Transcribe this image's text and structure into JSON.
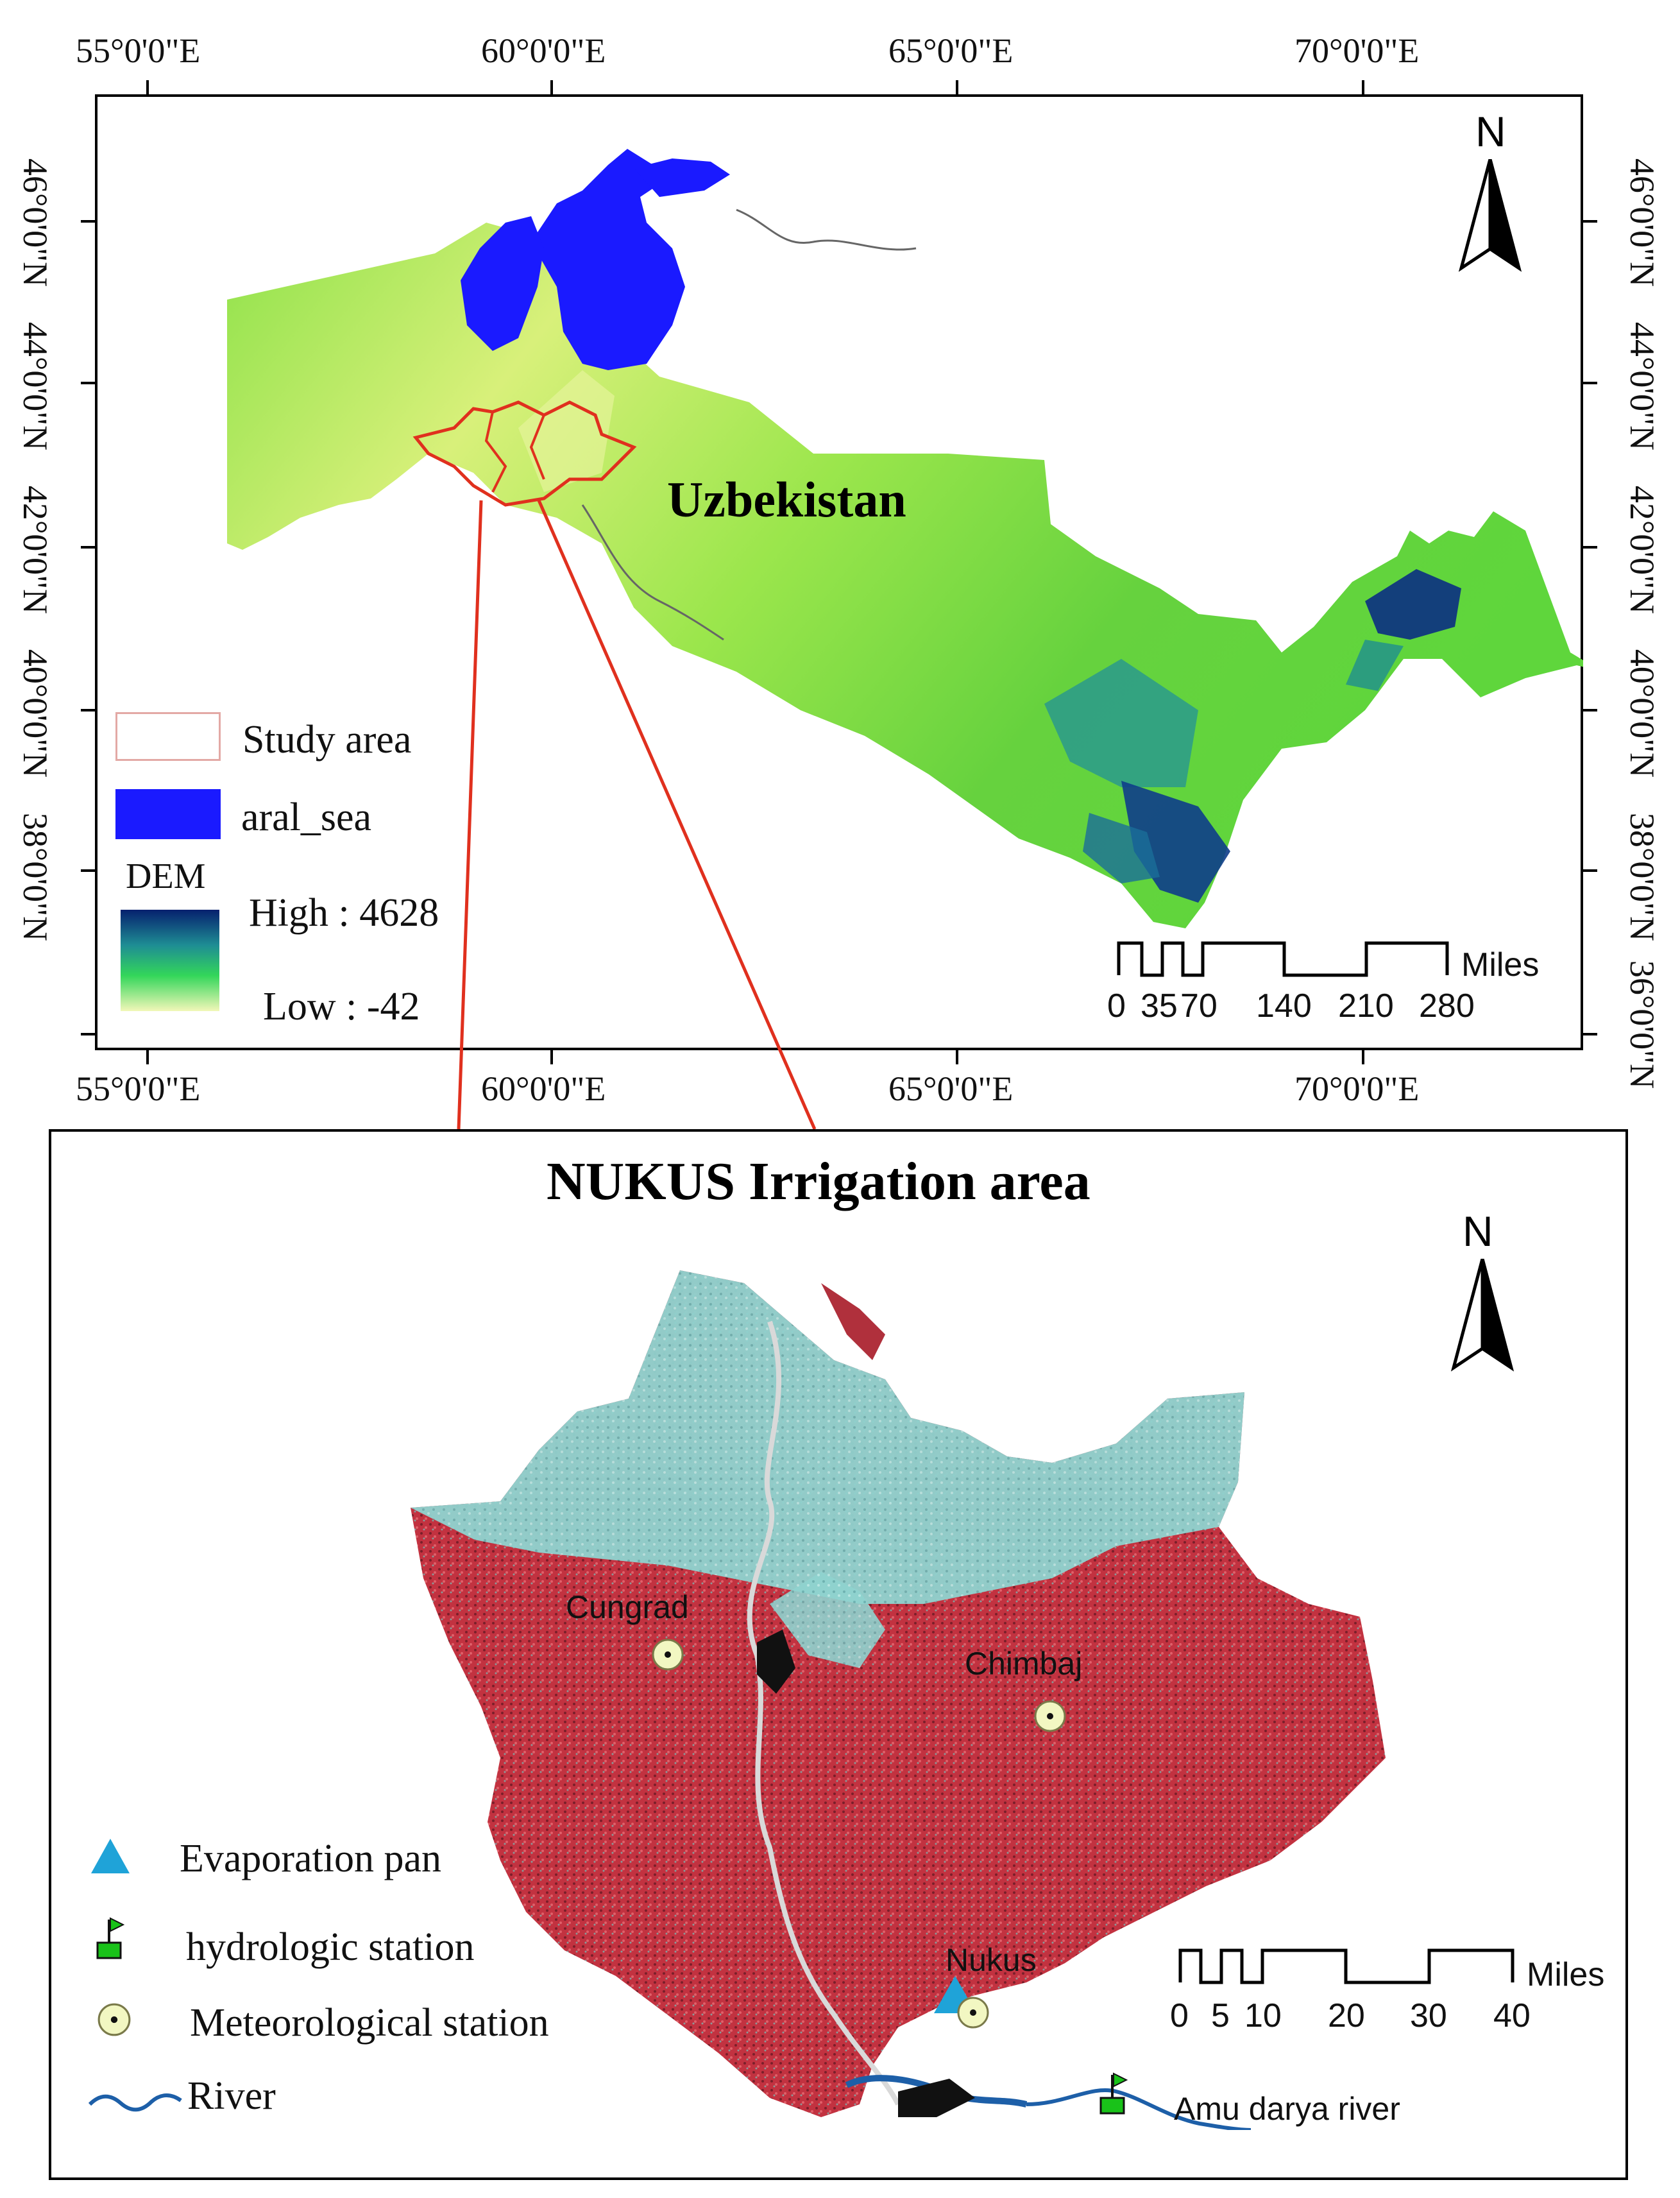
{
  "top_map": {
    "lon_ticks": [
      "55°0'0\"E",
      "60°0'0\"E",
      "65°0'0\"E",
      "70°0'0\"E"
    ],
    "lat_ticks": [
      "46°0'0\"N",
      "44°0'0\"N",
      "42°0'0\"N",
      "40°0'0\"N",
      "38°0'0\"N"
    ],
    "lat_ticks_right": [
      "46°0'0\"N",
      "44°0'0\"N",
      "42°0'0\"N",
      "40°0'0\"N",
      "38°0'0\"N",
      "36°0'0\"N"
    ],
    "country_label": "Uzbekistan",
    "north_label": "N",
    "legend": {
      "study_area": "Study area",
      "aral_sea": "aral_sea",
      "dem_title": "DEM",
      "dem_high": "High : 4628",
      "dem_low": "Low : -42"
    },
    "scale": {
      "unit": "Miles",
      "ticks": [
        "0",
        "35",
        "70",
        "140",
        "210",
        "280"
      ]
    },
    "colors": {
      "aral_sea": "#1a1aff",
      "study_area_outline": "#e0301e",
      "dem_high": "#06206e",
      "dem_low": "#f2f7b8"
    }
  },
  "bottom_map": {
    "title": "NUKUS Irrigation area",
    "north_label": "N",
    "places": {
      "cungrad": "Cungrad",
      "chimbaj": "Chimbaj",
      "nukus": "Nukus",
      "river": "Amu darya river"
    },
    "legend": {
      "evaporation_pan": "Evaporation pan",
      "hydrologic_station": "hydrologic station",
      "meteorological_station": "Meteorological station",
      "river": "River"
    },
    "scale": {
      "unit": "Miles",
      "ticks": [
        "0",
        "5",
        "10",
        "20",
        "30",
        "40"
      ]
    },
    "colors": {
      "evaporation_pan": "#1fa3d8",
      "hydrologic_station": "#19c219",
      "river": "#1d5fa8"
    }
  }
}
